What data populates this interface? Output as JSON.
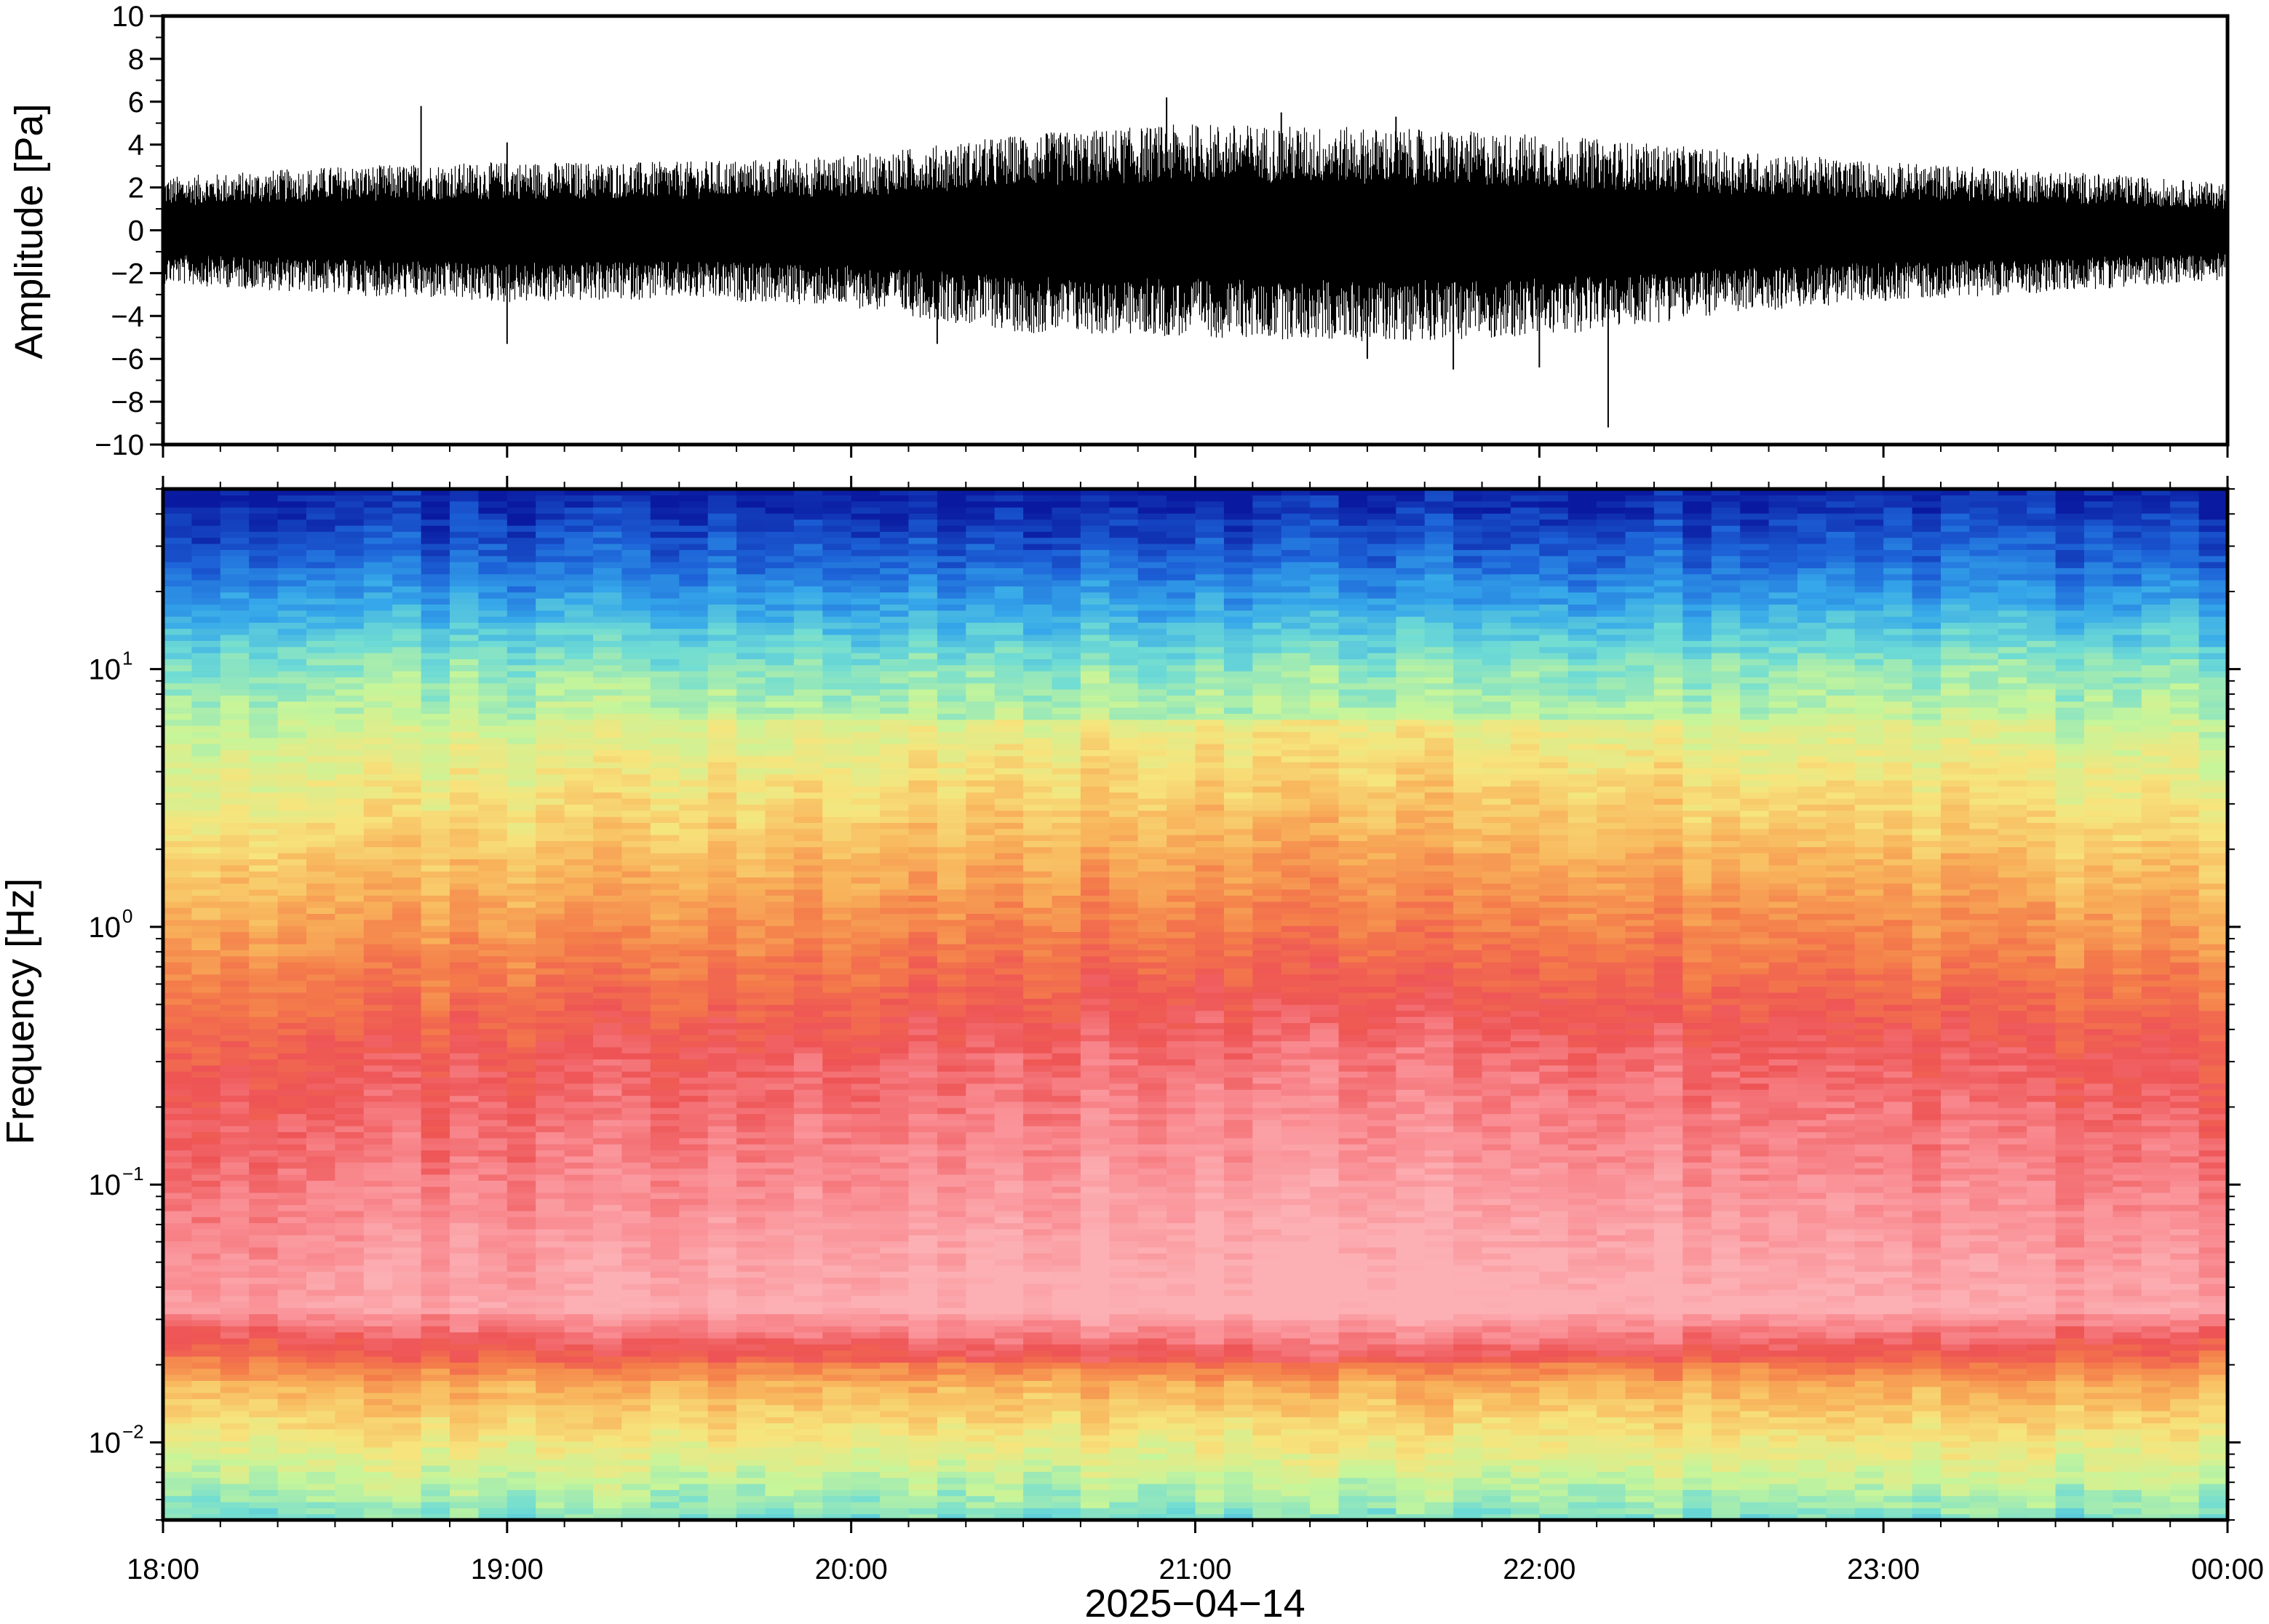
{
  "chart_data": [
    {
      "type": "line",
      "panel": "waveform",
      "ylabel": "Amplitude [Pa]",
      "ylim": [
        -10,
        10
      ],
      "yticks": [
        "10",
        "8",
        "6",
        "4",
        "2",
        "0",
        "−2",
        "−4",
        "−6",
        "−8",
        "−10"
      ],
      "ytick_values": [
        10,
        8,
        6,
        4,
        2,
        0,
        -2,
        -4,
        -6,
        -8,
        -10
      ],
      "xlim": [
        "2025-04-14T18:00",
        "2025-04-15T00:00"
      ],
      "envelope": {
        "time": [
          "18:00",
          "18:30",
          "19:00",
          "19:30",
          "20:00",
          "20:30",
          "21:00",
          "21:30",
          "22:00",
          "22:30",
          "23:00",
          "23:30",
          "00:00"
        ],
        "max": [
          2.5,
          3.0,
          3.2,
          3.2,
          3.5,
          4.5,
          5.0,
          4.8,
          4.5,
          3.8,
          3.2,
          2.8,
          2.2
        ],
        "min": [
          -2.5,
          -3.0,
          -3.4,
          -3.2,
          -3.6,
          -4.8,
          -5.0,
          -5.2,
          -5.0,
          -4.0,
          -3.3,
          -2.9,
          -2.3
        ]
      },
      "peaks": [
        {
          "time": "18:45",
          "value": 5.8
        },
        {
          "time": "19:00",
          "value": 4.1
        },
        {
          "time": "20:30",
          "value": 4.2
        },
        {
          "time": "20:55",
          "value": 6.2
        },
        {
          "time": "21:15",
          "value": 5.5
        },
        {
          "time": "21:35",
          "value": 5.3
        },
        {
          "time": "19:00",
          "value": -5.3
        },
        {
          "time": "20:15",
          "value": -5.3
        },
        {
          "time": "21:30",
          "value": -6.0
        },
        {
          "time": "21:45",
          "value": -6.5
        },
        {
          "time": "22:00",
          "value": -6.4
        },
        {
          "time": "22:12",
          "value": -9.2
        }
      ]
    },
    {
      "type": "heatmap",
      "panel": "spectrogram",
      "ylabel": "Frequency [Hz]",
      "yscale": "log",
      "ylim": [
        0.005,
        50
      ],
      "yticks": [
        {
          "base": "10",
          "exp": "1",
          "value": 10
        },
        {
          "base": "10",
          "exp": "0",
          "value": 1
        },
        {
          "base": "10",
          "exp": "−1",
          "value": 0.1
        },
        {
          "base": "10",
          "exp": "−2",
          "value": 0.01
        }
      ],
      "colormap": [
        "#0a1aa0",
        "#1d63d8",
        "#35a7ea",
        "#6fdcd4",
        "#c6f59a",
        "#f7e47c",
        "#f8b25a",
        "#f47c4a",
        "#ee5455",
        "#f98c92",
        "#fcb0b4"
      ],
      "xlabel": "2025−04−14",
      "xticks": [
        "18:00",
        "19:00",
        "20:00",
        "21:00",
        "22:00",
        "23:00",
        "00:00"
      ]
    }
  ]
}
